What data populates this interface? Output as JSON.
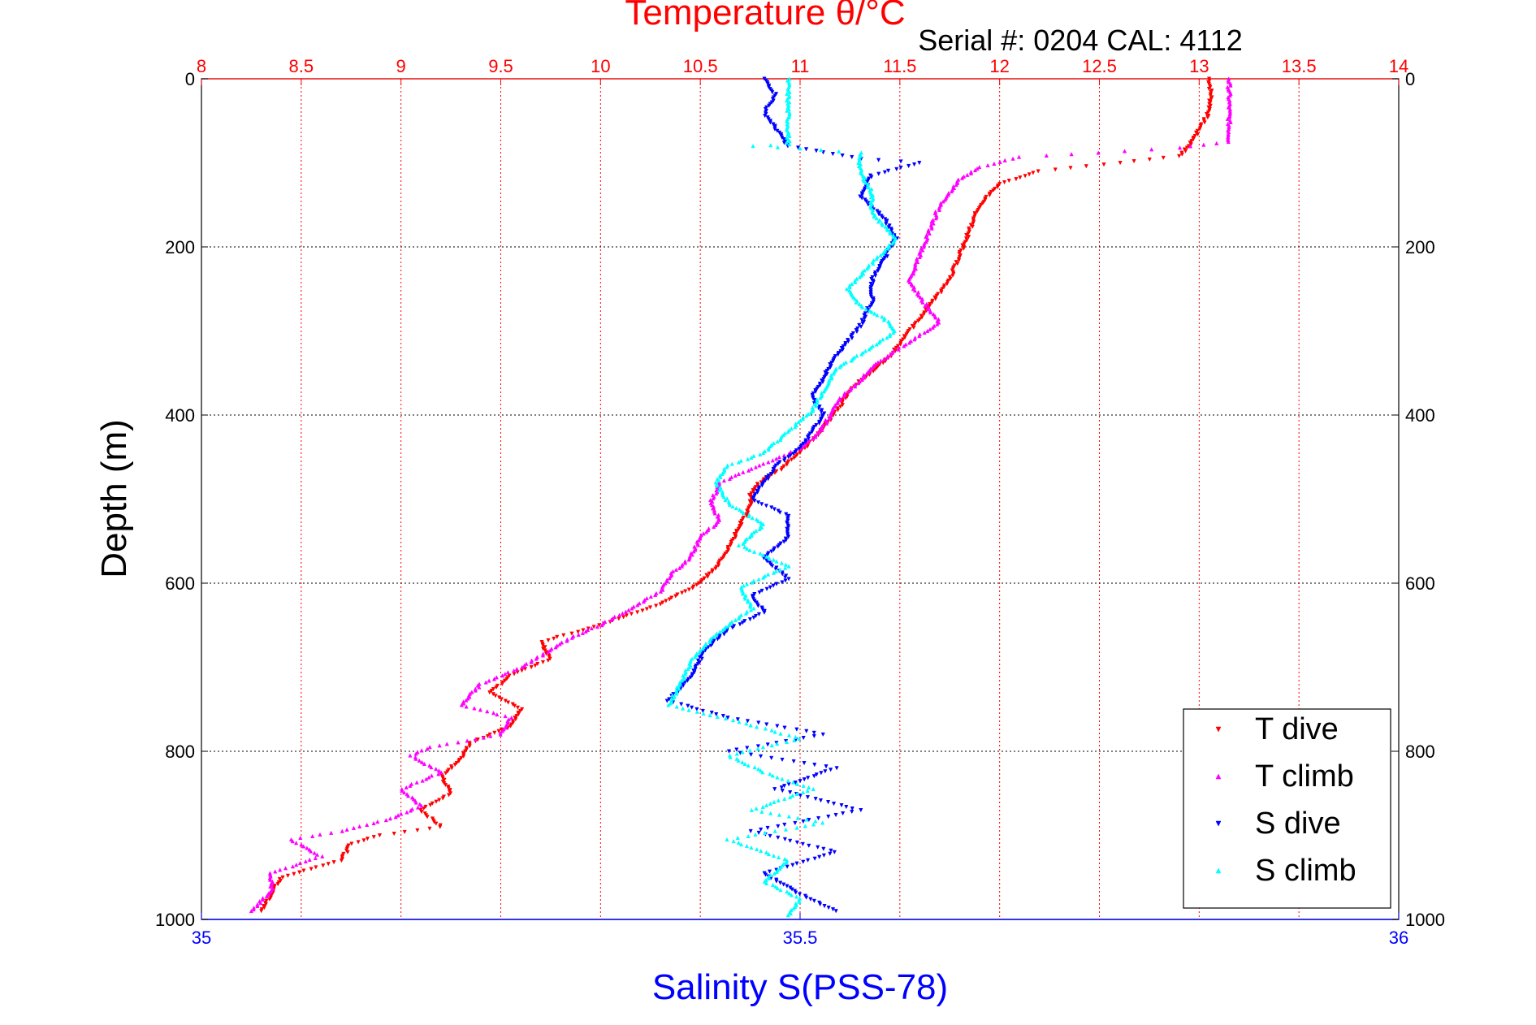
{
  "chart_data": {
    "type": "scatter",
    "title": "Temperature θ/°C",
    "subtitle": "Serial #: 0204  CAL: 4112",
    "ylabel": "Depth (m)",
    "xlabel_bottom": "Salinity S(PSS-78)",
    "xlabel_top": "Temperature θ/°C",
    "ylim": [
      1000,
      0
    ],
    "y_reversed": true,
    "x_top_lim": [
      8,
      14
    ],
    "x_bottom_lim": [
      35,
      36
    ],
    "y_ticks": [
      "0",
      "200",
      "400",
      "600",
      "800",
      "1000"
    ],
    "x_top_ticks": [
      "8",
      "8.5",
      "9",
      "9.5",
      "10",
      "10.5",
      "11",
      "11.5",
      "12",
      "12.5",
      "13",
      "13.5",
      "14"
    ],
    "x_bottom_ticks": [
      "35",
      "35.5",
      "36"
    ],
    "grid": true,
    "legend_position": "bottom-right",
    "colors": {
      "temperature_axis": "#ff0000",
      "salinity_axis": "#0000ff",
      "t_dive": "#ff0000",
      "t_climb": "#ff00ff",
      "s_dive": "#0000ff",
      "s_climb": "#00ffff"
    },
    "series": [
      {
        "name": "T dive",
        "axis": "temperature",
        "marker": "triangle-down",
        "points": [
          [
            13.05,
            0
          ],
          [
            13.06,
            20
          ],
          [
            13.05,
            40
          ],
          [
            13.0,
            60
          ],
          [
            12.95,
            80
          ],
          [
            12.9,
            92
          ],
          [
            12.6,
            100
          ],
          [
            12.2,
            110
          ],
          [
            12.0,
            125
          ],
          [
            11.9,
            150
          ],
          [
            11.85,
            180
          ],
          [
            11.8,
            210
          ],
          [
            11.75,
            240
          ],
          [
            11.65,
            270
          ],
          [
            11.55,
            300
          ],
          [
            11.45,
            330
          ],
          [
            11.35,
            350
          ],
          [
            11.25,
            370
          ],
          [
            11.2,
            390
          ],
          [
            11.1,
            420
          ],
          [
            11.0,
            445
          ],
          [
            10.9,
            465
          ],
          [
            10.8,
            480
          ],
          [
            10.75,
            495
          ],
          [
            10.75,
            510
          ],
          [
            10.7,
            530
          ],
          [
            10.65,
            555
          ],
          [
            10.6,
            575
          ],
          [
            10.5,
            600
          ],
          [
            10.3,
            625
          ],
          [
            10.0,
            650
          ],
          [
            9.7,
            670
          ],
          [
            9.75,
            690
          ],
          [
            9.55,
            710
          ],
          [
            9.45,
            730
          ],
          [
            9.6,
            750
          ],
          [
            9.55,
            770
          ],
          [
            9.35,
            790
          ],
          [
            9.3,
            810
          ],
          [
            9.2,
            830
          ],
          [
            9.25,
            850
          ],
          [
            9.1,
            870
          ],
          [
            9.2,
            890
          ],
          [
            8.9,
            900
          ],
          [
            8.75,
            910
          ],
          [
            8.7,
            930
          ],
          [
            8.4,
            950
          ],
          [
            8.35,
            970
          ],
          [
            8.3,
            990
          ]
        ]
      },
      {
        "name": "T climb",
        "axis": "temperature",
        "marker": "triangle-up",
        "points": [
          [
            13.15,
            0
          ],
          [
            13.15,
            40
          ],
          [
            13.15,
            75
          ],
          [
            12.9,
            82
          ],
          [
            12.5,
            88
          ],
          [
            12.1,
            93
          ],
          [
            11.9,
            105
          ],
          [
            11.8,
            120
          ],
          [
            11.7,
            150
          ],
          [
            11.65,
            180
          ],
          [
            11.6,
            210
          ],
          [
            11.55,
            240
          ],
          [
            11.6,
            260
          ],
          [
            11.7,
            290
          ],
          [
            11.5,
            320
          ],
          [
            11.35,
            345
          ],
          [
            11.3,
            360
          ],
          [
            11.2,
            380
          ],
          [
            11.15,
            400
          ],
          [
            11.1,
            420
          ],
          [
            11.0,
            440
          ],
          [
            10.8,
            460
          ],
          [
            10.6,
            480
          ],
          [
            10.55,
            505
          ],
          [
            10.6,
            525
          ],
          [
            10.5,
            545
          ],
          [
            10.45,
            570
          ],
          [
            10.35,
            590
          ],
          [
            10.3,
            610
          ],
          [
            10.15,
            630
          ],
          [
            10.0,
            650
          ],
          [
            9.85,
            665
          ],
          [
            9.75,
            680
          ],
          [
            9.6,
            700
          ],
          [
            9.4,
            720
          ],
          [
            9.3,
            745
          ],
          [
            9.55,
            760
          ],
          [
            9.5,
            780
          ],
          [
            9.15,
            795
          ],
          [
            9.05,
            805
          ],
          [
            9.2,
            825
          ],
          [
            9.0,
            845
          ],
          [
            9.1,
            865
          ],
          [
            8.95,
            880
          ],
          [
            8.7,
            895
          ],
          [
            8.45,
            905
          ],
          [
            8.6,
            925
          ],
          [
            8.35,
            945
          ],
          [
            8.35,
            965
          ],
          [
            8.25,
            990
          ]
        ]
      },
      {
        "name": "S dive",
        "axis": "salinity",
        "marker": "triangle-down",
        "points": [
          [
            35.47,
            0
          ],
          [
            35.48,
            20
          ],
          [
            35.47,
            40
          ],
          [
            35.48,
            60
          ],
          [
            35.49,
            80
          ],
          [
            35.55,
            95
          ],
          [
            35.6,
            100
          ],
          [
            35.56,
            115
          ],
          [
            35.55,
            140
          ],
          [
            35.57,
            165
          ],
          [
            35.58,
            190
          ],
          [
            35.57,
            215
          ],
          [
            35.56,
            240
          ],
          [
            35.56,
            265
          ],
          [
            35.55,
            295
          ],
          [
            35.53,
            330
          ],
          [
            35.52,
            355
          ],
          [
            35.51,
            380
          ],
          [
            35.52,
            400
          ],
          [
            35.51,
            420
          ],
          [
            35.5,
            440
          ],
          [
            35.48,
            460
          ],
          [
            35.47,
            480
          ],
          [
            35.46,
            500
          ],
          [
            35.49,
            520
          ],
          [
            35.49,
            545
          ],
          [
            35.47,
            570
          ],
          [
            35.49,
            595
          ],
          [
            35.46,
            615
          ],
          [
            35.47,
            635
          ],
          [
            35.44,
            655
          ],
          [
            35.42,
            680
          ],
          [
            35.41,
            710
          ],
          [
            35.39,
            740
          ],
          [
            35.44,
            760
          ],
          [
            35.52,
            780
          ],
          [
            35.44,
            800
          ],
          [
            35.53,
            820
          ],
          [
            35.48,
            845
          ],
          [
            35.55,
            870
          ],
          [
            35.46,
            895
          ],
          [
            35.53,
            920
          ],
          [
            35.47,
            945
          ],
          [
            35.5,
            970
          ],
          [
            35.53,
            990
          ]
        ]
      },
      {
        "name": "S climb",
        "axis": "salinity",
        "marker": "triangle-up",
        "points": [
          [
            35.49,
            0
          ],
          [
            35.49,
            30
          ],
          [
            35.49,
            60
          ],
          [
            35.49,
            78
          ],
          [
            35.46,
            80
          ],
          [
            35.5,
            83
          ],
          [
            35.55,
            88
          ],
          [
            35.55,
            110
          ],
          [
            35.56,
            135
          ],
          [
            35.56,
            160
          ],
          [
            35.58,
            190
          ],
          [
            35.56,
            220
          ],
          [
            35.54,
            250
          ],
          [
            35.55,
            270
          ],
          [
            35.57,
            285
          ],
          [
            35.58,
            300
          ],
          [
            35.56,
            320
          ],
          [
            35.53,
            345
          ],
          [
            35.52,
            370
          ],
          [
            35.51,
            395
          ],
          [
            35.49,
            420
          ],
          [
            35.47,
            445
          ],
          [
            35.44,
            460
          ],
          [
            35.43,
            480
          ],
          [
            35.44,
            505
          ],
          [
            35.47,
            530
          ],
          [
            35.45,
            555
          ],
          [
            35.49,
            580
          ],
          [
            35.45,
            605
          ],
          [
            35.46,
            630
          ],
          [
            35.43,
            660
          ],
          [
            35.41,
            690
          ],
          [
            35.4,
            720
          ],
          [
            35.39,
            745
          ],
          [
            35.45,
            765
          ],
          [
            35.5,
            785
          ],
          [
            35.44,
            805
          ],
          [
            35.47,
            825
          ],
          [
            35.51,
            845
          ],
          [
            35.46,
            870
          ],
          [
            35.52,
            885
          ],
          [
            35.44,
            905
          ],
          [
            35.49,
            930
          ],
          [
            35.47,
            955
          ],
          [
            35.5,
            975
          ],
          [
            35.49,
            995
          ]
        ]
      }
    ]
  }
}
